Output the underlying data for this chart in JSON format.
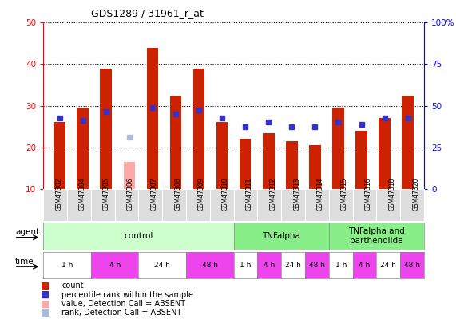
{
  "title": "GDS1289 / 31961_r_at",
  "samples": [
    "GSM47302",
    "GSM47304",
    "GSM47305",
    "GSM47306",
    "GSM47307",
    "GSM47308",
    "GSM47309",
    "GSM47310",
    "GSM47311",
    "GSM47312",
    "GSM47313",
    "GSM47314",
    "GSM47315",
    "GSM47316",
    "GSM47318",
    "GSM47320"
  ],
  "red_values": [
    26.0,
    29.5,
    39.0,
    null,
    44.0,
    32.5,
    39.0,
    26.0,
    22.0,
    23.5,
    21.5,
    20.5,
    29.5,
    24.0,
    27.0,
    32.5
  ],
  "blue_values": [
    27.0,
    26.5,
    28.5,
    null,
    29.5,
    28.0,
    29.0,
    27.0,
    25.0,
    26.0,
    25.0,
    25.0,
    26.0,
    25.5,
    27.0,
    27.0
  ],
  "pink_value_idx": 3,
  "pink_value": 16.5,
  "lightblue_value_idx": 3,
  "lightblue_value": 22.5,
  "ylim_left": [
    10,
    50
  ],
  "ylim_right": [
    0,
    100
  ],
  "yticks_left": [
    10,
    20,
    30,
    40,
    50
  ],
  "yticks_right": [
    0,
    25,
    50,
    75,
    100
  ],
  "ytick_labels_right": [
    "0",
    "25",
    "50",
    "75",
    "100%"
  ],
  "bar_color": "#cc2200",
  "blue_color": "#3333cc",
  "pink_color": "#ffaaaa",
  "lightblue_color": "#aabbdd",
  "agent_groups": [
    {
      "label": "control",
      "start": 0,
      "end": 8,
      "color": "#ccffcc"
    },
    {
      "label": "TNFalpha",
      "start": 8,
      "end": 12,
      "color": "#88ee88"
    },
    {
      "label": "TNFalpha and\nparthenolide",
      "start": 12,
      "end": 16,
      "color": "#88ee88"
    }
  ],
  "time_groups": [
    {
      "label": "1 h",
      "start": 0,
      "end": 2,
      "color": "#ffffff"
    },
    {
      "label": "4 h",
      "start": 2,
      "end": 4,
      "color": "#ee44ee"
    },
    {
      "label": "24 h",
      "start": 4,
      "end": 6,
      "color": "#ffffff"
    },
    {
      "label": "48 h",
      "start": 6,
      "end": 8,
      "color": "#ee44ee"
    },
    {
      "label": "1 h",
      "start": 8,
      "end": 9,
      "color": "#ffffff"
    },
    {
      "label": "4 h",
      "start": 9,
      "end": 10,
      "color": "#ee44ee"
    },
    {
      "label": "24 h",
      "start": 10,
      "end": 11,
      "color": "#ffffff"
    },
    {
      "label": "48 h",
      "start": 11,
      "end": 12,
      "color": "#ee44ee"
    },
    {
      "label": "1 h",
      "start": 12,
      "end": 13,
      "color": "#ffffff"
    },
    {
      "label": "4 h",
      "start": 13,
      "end": 14,
      "color": "#ee44ee"
    },
    {
      "label": "24 h",
      "start": 14,
      "end": 15,
      "color": "#ffffff"
    },
    {
      "label": "48 h",
      "start": 15,
      "end": 16,
      "color": "#ee44ee"
    }
  ],
  "legend_items": [
    {
      "label": "count",
      "color": "#cc2200"
    },
    {
      "label": "percentile rank within the sample",
      "color": "#3333cc"
    },
    {
      "label": "value, Detection Call = ABSENT",
      "color": "#ffaaaa"
    },
    {
      "label": "rank, Detection Call = ABSENT",
      "color": "#aabbdd"
    }
  ],
  "bar_width": 0.5,
  "blue_marker_size": 4,
  "n_samples": 16
}
